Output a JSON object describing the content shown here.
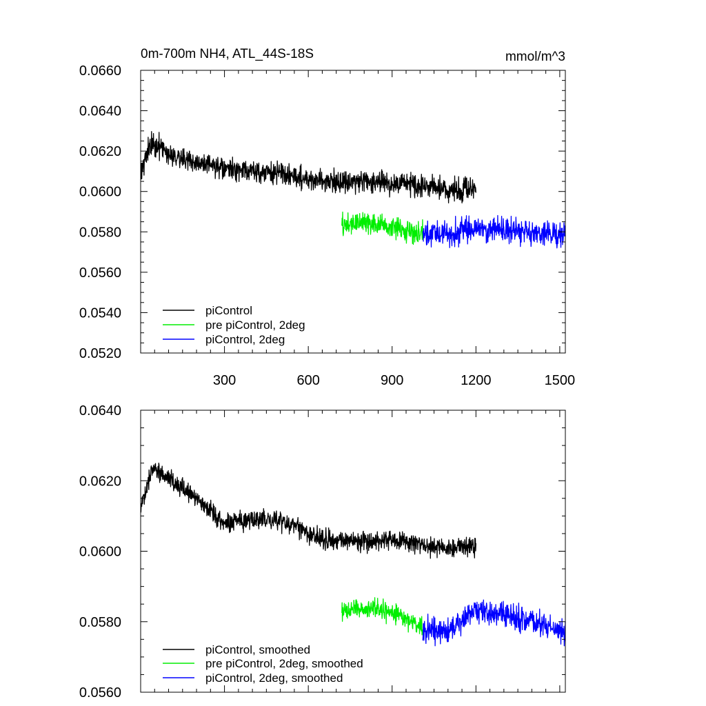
{
  "chart_data": [
    {
      "type": "line",
      "title": "0m-700m NH4, ATL_44S-18S",
      "units": "mmol/m^3",
      "xlim": [
        0,
        1520
      ],
      "ylim": [
        0.052,
        0.066
      ],
      "x_ticks": [
        300,
        600,
        900,
        1200,
        1500
      ],
      "x_tick_labels": [
        "300",
        "600",
        "900",
        "1200",
        "1500"
      ],
      "y_ticks": [
        0.052,
        0.054,
        0.056,
        0.058,
        0.06,
        0.062,
        0.064,
        0.066
      ],
      "y_tick_labels": [
        "0.0520",
        "0.0540",
        "0.0560",
        "0.0580",
        "0.0600",
        "0.0620",
        "0.0640",
        "0.0660"
      ],
      "legend_position": "bottom-left",
      "series": [
        {
          "name": "piControl",
          "color": "#000000",
          "x": [
            1,
            40,
            100,
            200,
            300,
            400,
            500,
            600,
            700,
            800,
            900,
            1000,
            1100,
            1200
          ],
          "mean": [
            0.0611,
            0.0624,
            0.0619,
            0.0614,
            0.0611,
            0.061,
            0.0609,
            0.0606,
            0.0605,
            0.0605,
            0.0604,
            0.0603,
            0.0601,
            0.0601
          ],
          "noise_amplitude": 0.0008
        },
        {
          "name": "pre piControl, 2deg",
          "color": "#00ee00",
          "x": [
            720,
            800,
            900,
            1010
          ],
          "mean": [
            0.0583,
            0.0585,
            0.0582,
            0.0579
          ],
          "noise_amplitude": 0.0008
        },
        {
          "name": "piControl, 2deg",
          "color": "#0000ff",
          "x": [
            1010,
            1100,
            1200,
            1300,
            1400,
            1520
          ],
          "mean": [
            0.0578,
            0.0579,
            0.0582,
            0.0581,
            0.058,
            0.0578
          ],
          "noise_amplitude": 0.0009
        }
      ]
    },
    {
      "type": "line",
      "title": "",
      "xlim": [
        0,
        1520
      ],
      "ylim": [
        0.056,
        0.064
      ],
      "x_ticks": [
        300,
        600,
        900,
        1200,
        1500
      ],
      "y_ticks": [
        0.056,
        0.058,
        0.06,
        0.062,
        0.064
      ],
      "y_tick_labels": [
        "0.0560",
        "0.0580",
        "0.0600",
        "0.0620",
        "0.0640"
      ],
      "legend_position": "bottom-left",
      "series": [
        {
          "name": "piControl, smoothed",
          "color": "#000000",
          "x": [
            1,
            40,
            100,
            200,
            300,
            400,
            500,
            600,
            700,
            800,
            900,
            1000,
            1100,
            1200
          ],
          "mean": [
            0.0612,
            0.0624,
            0.0621,
            0.0615,
            0.0608,
            0.0609,
            0.0609,
            0.0605,
            0.0603,
            0.0603,
            0.0603,
            0.0602,
            0.0601,
            0.0601
          ],
          "noise_amplitude": 0.0004
        },
        {
          "name": "pre piControl, 2deg, smoothed",
          "color": "#00ee00",
          "x": [
            720,
            800,
            900,
            1010
          ],
          "mean": [
            0.0583,
            0.0584,
            0.0583,
            0.0578
          ],
          "noise_amplitude": 0.0004
        },
        {
          "name": "piControl, 2deg, smoothed",
          "color": "#0000ff",
          "x": [
            1010,
            1100,
            1200,
            1300,
            1400,
            1520
          ],
          "mean": [
            0.0578,
            0.0577,
            0.0583,
            0.0582,
            0.058,
            0.0577
          ],
          "noise_amplitude": 0.0005
        }
      ]
    }
  ]
}
